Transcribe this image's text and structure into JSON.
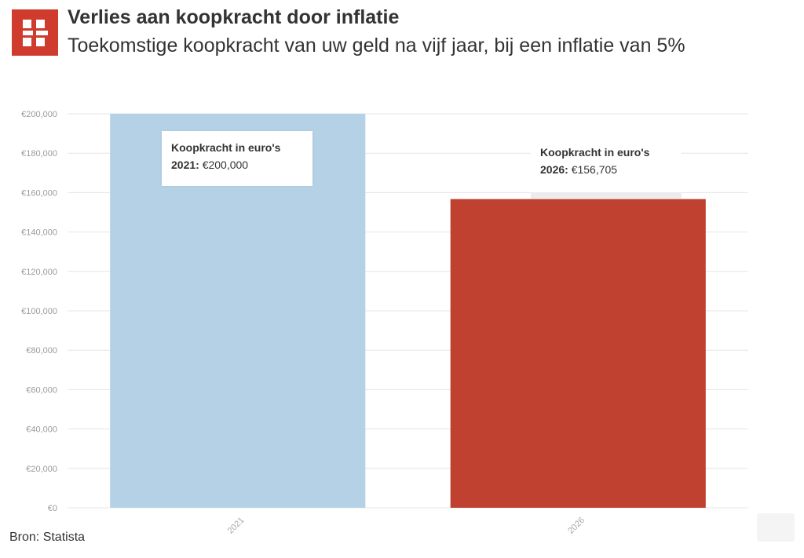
{
  "header": {
    "title": "Verlies aan koopkracht door inflatie",
    "subtitle": "Toekomstige koopkracht van uw geld na vijf jaar, bij een inflatie van 5%"
  },
  "source": "Bron: Statista",
  "colors": {
    "logo": "#cf3b2c",
    "bar_2021": "#b5d1e5",
    "bar_2026": "#c0412f",
    "grid": "#e6e6e6"
  },
  "chart_data": {
    "type": "bar",
    "categories": [
      "2021",
      "2026"
    ],
    "values": [
      200000,
      156705
    ],
    "ylim": [
      0,
      200000
    ],
    "ytick_step": 20000,
    "yticks": [
      "€0",
      "€20,000",
      "€40,000",
      "€60,000",
      "€80,000",
      "€100,000",
      "€120,000",
      "€140,000",
      "€160,000",
      "€180,000",
      "€200,000"
    ],
    "grid": true,
    "tooltips": [
      {
        "series": "Koopkracht in euro's",
        "label": "2021:",
        "value": "€200,000"
      },
      {
        "series": "Koopkracht in euro's",
        "label": "2026:",
        "value": "€156,705"
      }
    ]
  }
}
